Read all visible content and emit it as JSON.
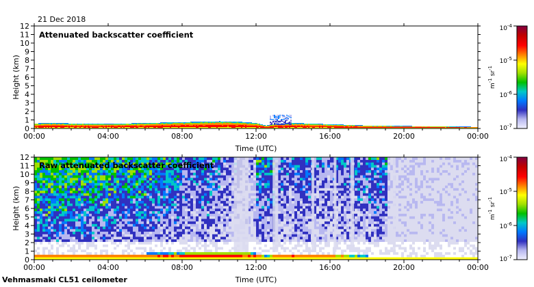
{
  "date": "21 Dec 2018",
  "footer": "Vehmasmaki CL51 ceilometer",
  "colors": {
    "colormap": [
      "#f0f0ff",
      "#b8b8f0",
      "#3030c0",
      "#0078ff",
      "#00c8c8",
      "#00c000",
      "#a0e000",
      "#ffff00",
      "#ff8000",
      "#ff0000",
      "#c00000",
      "#800040"
    ],
    "empty": "#ffffff",
    "noise": "#dcdcf0"
  },
  "chart_data": [
    {
      "type": "heatmap",
      "title": "Attenuated backscatter coefficient",
      "xlabel": "Time (UTC)",
      "ylabel": "Height (km)",
      "xticks": [
        "00:00",
        "04:00",
        "08:00",
        "12:00",
        "16:00",
        "20:00",
        "00:00"
      ],
      "yticks": [
        "0",
        "1",
        "2",
        "3",
        "4",
        "5",
        "6",
        "7",
        "8",
        "9",
        "10",
        "11",
        "12"
      ],
      "xlim": [
        0,
        24
      ],
      "ylim": [
        0,
        12
      ],
      "colorbar": {
        "ticks": [
          "10",
          "10",
          "10",
          "10"
        ],
        "exponents": [
          "-4",
          "-5",
          "-6",
          "-7"
        ],
        "unit": "m",
        "unit_exp1": "-1",
        "unit_part2": "sr",
        "unit_exp2": "-1",
        "scale": "log",
        "range": [
          1e-07,
          0.0001
        ]
      },
      "boundary_layer_top_km": [
        [
          0,
          0.55
        ],
        [
          1,
          0.6
        ],
        [
          2,
          0.55
        ],
        [
          4,
          0.5
        ],
        [
          6,
          0.6
        ],
        [
          8,
          0.7
        ],
        [
          10,
          0.8
        ],
        [
          11,
          0.75
        ],
        [
          12,
          0.6
        ],
        [
          12.5,
          0.3
        ],
        [
          13,
          0.5
        ],
        [
          14,
          0.6
        ],
        [
          16,
          0.45
        ],
        [
          18,
          0.3
        ],
        [
          20,
          0.25
        ],
        [
          22,
          0.2
        ],
        [
          24,
          0.15
        ]
      ],
      "cloud": {
        "time_range": [
          12.7,
          13.9
        ],
        "height_range": [
          0.4,
          1.6
        ]
      }
    },
    {
      "type": "heatmap",
      "title": "Raw attenuated backscatter coefficient",
      "xlabel": "Time (UTC)",
      "ylabel": "Height (km)",
      "xticks": [
        "00:00",
        "04:00",
        "08:00",
        "12:00",
        "16:00",
        "20:00",
        "00:00"
      ],
      "yticks": [
        "0",
        "1",
        "2",
        "3",
        "4",
        "5",
        "6",
        "7",
        "8",
        "9",
        "10",
        "11",
        "12"
      ],
      "xlim": [
        0,
        24
      ],
      "ylim": [
        0,
        12
      ],
      "colorbar": {
        "ticks": [
          "10",
          "10",
          "10",
          "10"
        ],
        "exponents": [
          "-4",
          "-5",
          "-6",
          "-7"
        ],
        "unit": "m",
        "unit_exp1": "-1",
        "unit_part2": "sr",
        "unit_exp2": "-1",
        "scale": "log",
        "range": [
          1e-07,
          0.0001
        ]
      },
      "noise_level_by_hour": [
        0.75,
        0.75,
        0.7,
        0.7,
        0.65,
        0.65,
        0.6,
        0.55,
        0.45,
        0.5,
        0.35,
        0.3,
        0.55,
        0.4,
        0.45,
        0.35,
        0.4,
        0.45,
        0.5,
        0.15,
        0.15,
        0.12,
        0.12,
        0.1
      ]
    }
  ]
}
